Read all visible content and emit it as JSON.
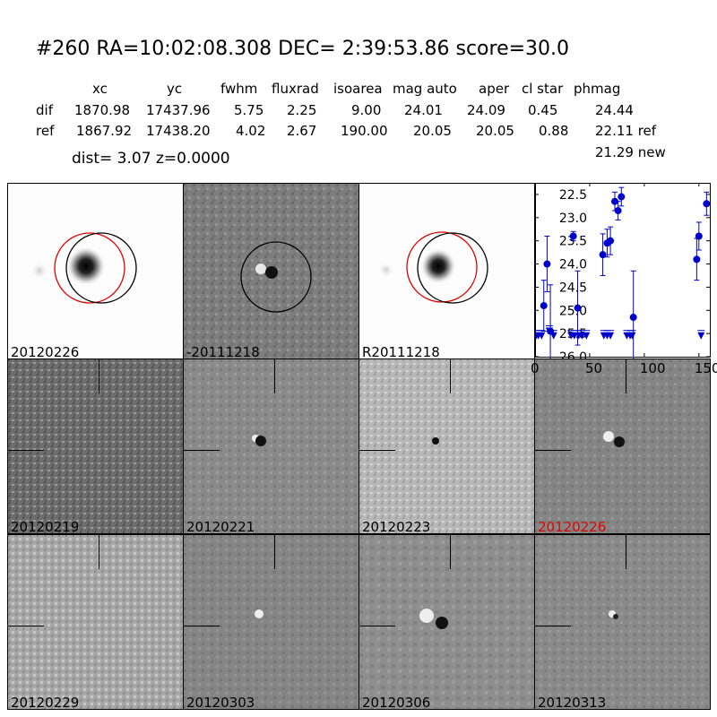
{
  "header": {
    "title": "#260   RA=10:02:08.308 DEC= 2:39:53.86      score=30.0",
    "columns": [
      "xc",
      "yc",
      "fwhm",
      "fluxrad",
      "isoarea",
      "mag auto",
      "aper",
      "cl star",
      "phmag"
    ],
    "rows": [
      {
        "name": "dif",
        "values": [
          "1870.98",
          "17437.96",
          "5.75",
          "2.25",
          "9.00",
          "24.01",
          "24.09",
          "0.45",
          "24.44"
        ]
      },
      {
        "name": "ref",
        "values": [
          "1867.92",
          "17438.20",
          "4.02",
          "2.67",
          "190.00",
          "20.05",
          "20.05",
          "0.88",
          "22.11 ref"
        ]
      }
    ],
    "extra_phmag": "21.29 new",
    "dist_z": "dist=  3.07      z=0.0000"
  },
  "panels": {
    "top": [
      "20120226",
      "-20111218",
      "R20111218"
    ],
    "row2": [
      "20120219",
      "20120221",
      "20120223",
      "20120226"
    ],
    "row3": [
      "20120229",
      "20120303",
      "20120306",
      "20120313"
    ]
  },
  "colors": {
    "highlight": "#e00000",
    "points": "#0000cc"
  },
  "chart_data": {
    "type": "scatter",
    "xlim": [
      0,
      160
    ],
    "ylim": [
      26.0,
      22.25
    ],
    "yinverted": true,
    "xticks": [
      "0",
      "50",
      "100",
      "150"
    ],
    "yticks": [
      "22.5",
      "23.0",
      "23.5",
      "24.0",
      "24.5",
      "25.0",
      "25.5",
      "26.0"
    ],
    "detections": [
      {
        "x": 8,
        "y": 24.9,
        "err": 0.55
      },
      {
        "x": 11,
        "y": 24.0,
        "err": 0.6
      },
      {
        "x": 14,
        "y": 25.45,
        "err": 1.0
      },
      {
        "x": 35,
        "y": 23.4,
        "err": 0.1
      },
      {
        "x": 39,
        "y": 24.95,
        "err": 0.8
      },
      {
        "x": 62,
        "y": 23.8,
        "err": 0.45
      },
      {
        "x": 66,
        "y": 23.55,
        "err": 0.3
      },
      {
        "x": 69,
        "y": 23.5,
        "err": 0.3
      },
      {
        "x": 73,
        "y": 22.65,
        "err": 0.2
      },
      {
        "x": 76,
        "y": 22.85,
        "err": 0.2
      },
      {
        "x": 79,
        "y": 22.55,
        "err": 0.2
      },
      {
        "x": 90,
        "y": 25.15,
        "err": 1.0
      },
      {
        "x": 148,
        "y": 23.9,
        "err": 0.45
      },
      {
        "x": 150,
        "y": 23.4,
        "err": 0.3
      },
      {
        "x": 157,
        "y": 22.7,
        "err": 0.25
      }
    ],
    "limits": [
      {
        "x": 1,
        "y": 25.55
      },
      {
        "x": 3,
        "y": 25.55
      },
      {
        "x": 6,
        "y": 25.55
      },
      {
        "x": 13,
        "y": 25.45
      },
      {
        "x": 17,
        "y": 25.55
      },
      {
        "x": 33,
        "y": 25.55
      },
      {
        "x": 36,
        "y": 25.55
      },
      {
        "x": 40,
        "y": 25.55
      },
      {
        "x": 43,
        "y": 25.55
      },
      {
        "x": 47,
        "y": 25.55
      },
      {
        "x": 63,
        "y": 25.55
      },
      {
        "x": 66,
        "y": 25.55
      },
      {
        "x": 69,
        "y": 25.55
      },
      {
        "x": 84,
        "y": 25.55
      },
      {
        "x": 87,
        "y": 25.55
      },
      {
        "x": 89,
        "y": 25.55
      },
      {
        "x": 152,
        "y": 25.55
      }
    ]
  }
}
